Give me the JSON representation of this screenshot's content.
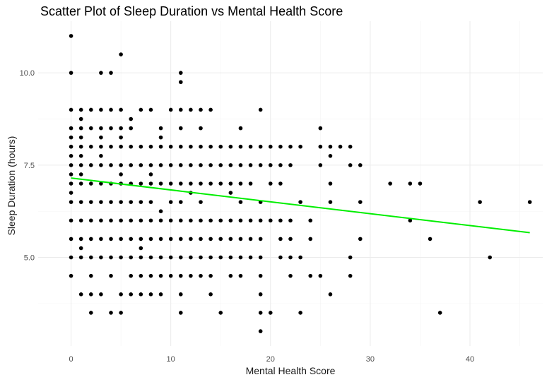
{
  "chart_data": {
    "type": "scatter",
    "title": "Scatter Plot of Sleep Duration vs Mental Health Score",
    "xlabel": "Mental Health Score",
    "ylabel": "Sleep Duration (hours)",
    "xlim": [
      -3.3,
      47.3
    ],
    "ylim": [
      2.6,
      11.4
    ],
    "x_ticks": [
      0,
      10,
      20,
      30,
      40
    ],
    "y_ticks": [
      5.0,
      7.5,
      10.0
    ],
    "x_tick_labels": [
      "0",
      "10",
      "20",
      "30",
      "40"
    ],
    "y_tick_labels": [
      "5.0",
      "7.5",
      "10.0"
    ],
    "grid": true,
    "point_color": "#000000",
    "trend_color": "#00ee00",
    "trend_line": {
      "x0": 0,
      "y0": 7.15,
      "x1": 46,
      "y1": 5.67
    },
    "points": [
      [
        0,
        11
      ],
      [
        0,
        10
      ],
      [
        5,
        10.5
      ],
      [
        3,
        10
      ],
      [
        4,
        10
      ],
      [
        11,
        10
      ],
      [
        11,
        9.75
      ],
      [
        0,
        9
      ],
      [
        1,
        9
      ],
      [
        2,
        9
      ],
      [
        3,
        9
      ],
      [
        4,
        9
      ],
      [
        5,
        9
      ],
      [
        7,
        9
      ],
      [
        8,
        9
      ],
      [
        10,
        9
      ],
      [
        11,
        9
      ],
      [
        12,
        9
      ],
      [
        13,
        9
      ],
      [
        14,
        9
      ],
      [
        19,
        9
      ],
      [
        1,
        8.75
      ],
      [
        6,
        8.75
      ],
      [
        0,
        8.5
      ],
      [
        1,
        8.5
      ],
      [
        2,
        8.5
      ],
      [
        3,
        8.5
      ],
      [
        4,
        8.5
      ],
      [
        5,
        8.5
      ],
      [
        6,
        8.5
      ],
      [
        9,
        8.5
      ],
      [
        11,
        8.5
      ],
      [
        13,
        8.5
      ],
      [
        17,
        8.5
      ],
      [
        25,
        8.5
      ],
      [
        0,
        8.25
      ],
      [
        1,
        8.25
      ],
      [
        3,
        8.25
      ],
      [
        5,
        8.25
      ],
      [
        9,
        8.25
      ],
      [
        0,
        8
      ],
      [
        1,
        8
      ],
      [
        2,
        8
      ],
      [
        3,
        8
      ],
      [
        4,
        8
      ],
      [
        5,
        8
      ],
      [
        6,
        8
      ],
      [
        7,
        8
      ],
      [
        8,
        8
      ],
      [
        9,
        8
      ],
      [
        10,
        8
      ],
      [
        11,
        8
      ],
      [
        12,
        8
      ],
      [
        13,
        8
      ],
      [
        14,
        8
      ],
      [
        15,
        8
      ],
      [
        16,
        8
      ],
      [
        17,
        8
      ],
      [
        18,
        8
      ],
      [
        19,
        8
      ],
      [
        20,
        8
      ],
      [
        21,
        8
      ],
      [
        22,
        8
      ],
      [
        23,
        8
      ],
      [
        25,
        8
      ],
      [
        26,
        8
      ],
      [
        27,
        8
      ],
      [
        28,
        8
      ],
      [
        0,
        7.75
      ],
      [
        1,
        7.75
      ],
      [
        3,
        7.75
      ],
      [
        26,
        7.75
      ],
      [
        0,
        7.5
      ],
      [
        1,
        7.5
      ],
      [
        2,
        7.5
      ],
      [
        3,
        7.5
      ],
      [
        4,
        7.5
      ],
      [
        5,
        7.5
      ],
      [
        6,
        7.5
      ],
      [
        7,
        7.5
      ],
      [
        8,
        7.5
      ],
      [
        9,
        7.5
      ],
      [
        10,
        7.5
      ],
      [
        11,
        7.5
      ],
      [
        12,
        7.5
      ],
      [
        13,
        7.5
      ],
      [
        14,
        7.5
      ],
      [
        15,
        7.5
      ],
      [
        16,
        7.5
      ],
      [
        17,
        7.5
      ],
      [
        18,
        7.5
      ],
      [
        19,
        7.5
      ],
      [
        20,
        7.5
      ],
      [
        21,
        7.5
      ],
      [
        22,
        7.5
      ],
      [
        25,
        7.5
      ],
      [
        28,
        7.5
      ],
      [
        29,
        7.5
      ],
      [
        0,
        7.25
      ],
      [
        1,
        7.25
      ],
      [
        5,
        7.25
      ],
      [
        8,
        7.25
      ],
      [
        0,
        7
      ],
      [
        1,
        7
      ],
      [
        2,
        7
      ],
      [
        3,
        7
      ],
      [
        4,
        7
      ],
      [
        5,
        7
      ],
      [
        6,
        7
      ],
      [
        7,
        7
      ],
      [
        8,
        7
      ],
      [
        9,
        7
      ],
      [
        10,
        7
      ],
      [
        11,
        7
      ],
      [
        12,
        7
      ],
      [
        13,
        7
      ],
      [
        14,
        7
      ],
      [
        15,
        7
      ],
      [
        16,
        7
      ],
      [
        17,
        7
      ],
      [
        18,
        7
      ],
      [
        20,
        7
      ],
      [
        21,
        7
      ],
      [
        26,
        7
      ],
      [
        32,
        7
      ],
      [
        34,
        7
      ],
      [
        35,
        7
      ],
      [
        0,
        6.75
      ],
      [
        12,
        6.75
      ],
      [
        16,
        6.75
      ],
      [
        0,
        6.5
      ],
      [
        1,
        6.5
      ],
      [
        2,
        6.5
      ],
      [
        3,
        6.5
      ],
      [
        4,
        6.5
      ],
      [
        5,
        6.5
      ],
      [
        6,
        6.5
      ],
      [
        7,
        6.5
      ],
      [
        8,
        6.5
      ],
      [
        10,
        6.5
      ],
      [
        11,
        6.5
      ],
      [
        13,
        6.5
      ],
      [
        17,
        6.5
      ],
      [
        19,
        6.5
      ],
      [
        23,
        6.5
      ],
      [
        26,
        6.5
      ],
      [
        29,
        6.5
      ],
      [
        41,
        6.5
      ],
      [
        46,
        6.5
      ],
      [
        9,
        6.25
      ],
      [
        0,
        6
      ],
      [
        1,
        6
      ],
      [
        2,
        6
      ],
      [
        3,
        6
      ],
      [
        4,
        6
      ],
      [
        5,
        6
      ],
      [
        6,
        6
      ],
      [
        7,
        6
      ],
      [
        8,
        6
      ],
      [
        9,
        6
      ],
      [
        10,
        6
      ],
      [
        11,
        6
      ],
      [
        12,
        6
      ],
      [
        13,
        6
      ],
      [
        14,
        6
      ],
      [
        15,
        6
      ],
      [
        16,
        6
      ],
      [
        17,
        6
      ],
      [
        18,
        6
      ],
      [
        19,
        6
      ],
      [
        20,
        6
      ],
      [
        21,
        6
      ],
      [
        22,
        6
      ],
      [
        24,
        6
      ],
      [
        34,
        6
      ],
      [
        0,
        5.5
      ],
      [
        1,
        5.5
      ],
      [
        2,
        5.5
      ],
      [
        3,
        5.5
      ],
      [
        4,
        5.5
      ],
      [
        5,
        5.5
      ],
      [
        6,
        5.5
      ],
      [
        7,
        5.5
      ],
      [
        8,
        5.5
      ],
      [
        9,
        5.5
      ],
      [
        10,
        5.5
      ],
      [
        11,
        5.5
      ],
      [
        12,
        5.5
      ],
      [
        13,
        5.5
      ],
      [
        14,
        5.5
      ],
      [
        15,
        5.5
      ],
      [
        16,
        5.5
      ],
      [
        17,
        5.5
      ],
      [
        18,
        5.5
      ],
      [
        19,
        5.5
      ],
      [
        21,
        5.5
      ],
      [
        22,
        5.5
      ],
      [
        24,
        5.5
      ],
      [
        29,
        5.5
      ],
      [
        36,
        5.5
      ],
      [
        1,
        5.25
      ],
      [
        7,
        5.25
      ],
      [
        0,
        5
      ],
      [
        1,
        5
      ],
      [
        2,
        5
      ],
      [
        3,
        5
      ],
      [
        4,
        5
      ],
      [
        5,
        5
      ],
      [
        6,
        5
      ],
      [
        7,
        5
      ],
      [
        8,
        5
      ],
      [
        9,
        5
      ],
      [
        10,
        5
      ],
      [
        11,
        5
      ],
      [
        12,
        5
      ],
      [
        13,
        5
      ],
      [
        14,
        5
      ],
      [
        15,
        5
      ],
      [
        16,
        5
      ],
      [
        17,
        5
      ],
      [
        18,
        5
      ],
      [
        19,
        5
      ],
      [
        21,
        5
      ],
      [
        22,
        5
      ],
      [
        23,
        5
      ],
      [
        28,
        5
      ],
      [
        42,
        5
      ],
      [
        0,
        4.5
      ],
      [
        2,
        4.5
      ],
      [
        4,
        4.5
      ],
      [
        6,
        4.5
      ],
      [
        7,
        4.5
      ],
      [
        8,
        4.5
      ],
      [
        9,
        4.5
      ],
      [
        10,
        4.5
      ],
      [
        11,
        4.5
      ],
      [
        12,
        4.5
      ],
      [
        13,
        4.5
      ],
      [
        14,
        4.5
      ],
      [
        16,
        4.5
      ],
      [
        17,
        4.5
      ],
      [
        19,
        4.5
      ],
      [
        22,
        4.5
      ],
      [
        24,
        4.5
      ],
      [
        25,
        4.5
      ],
      [
        28,
        4.5
      ],
      [
        1,
        4
      ],
      [
        2,
        4
      ],
      [
        3,
        4
      ],
      [
        5,
        4
      ],
      [
        6,
        4
      ],
      [
        7,
        4
      ],
      [
        8,
        4
      ],
      [
        9,
        4
      ],
      [
        11,
        4
      ],
      [
        14,
        4
      ],
      [
        19,
        4
      ],
      [
        26,
        4
      ],
      [
        2,
        3.5
      ],
      [
        4,
        3.5
      ],
      [
        5,
        3.5
      ],
      [
        11,
        3.5
      ],
      [
        15,
        3.5
      ],
      [
        19,
        3.5
      ],
      [
        20,
        3.5
      ],
      [
        23,
        3.5
      ],
      [
        37,
        3.5
      ],
      [
        19,
        3
      ]
    ]
  }
}
